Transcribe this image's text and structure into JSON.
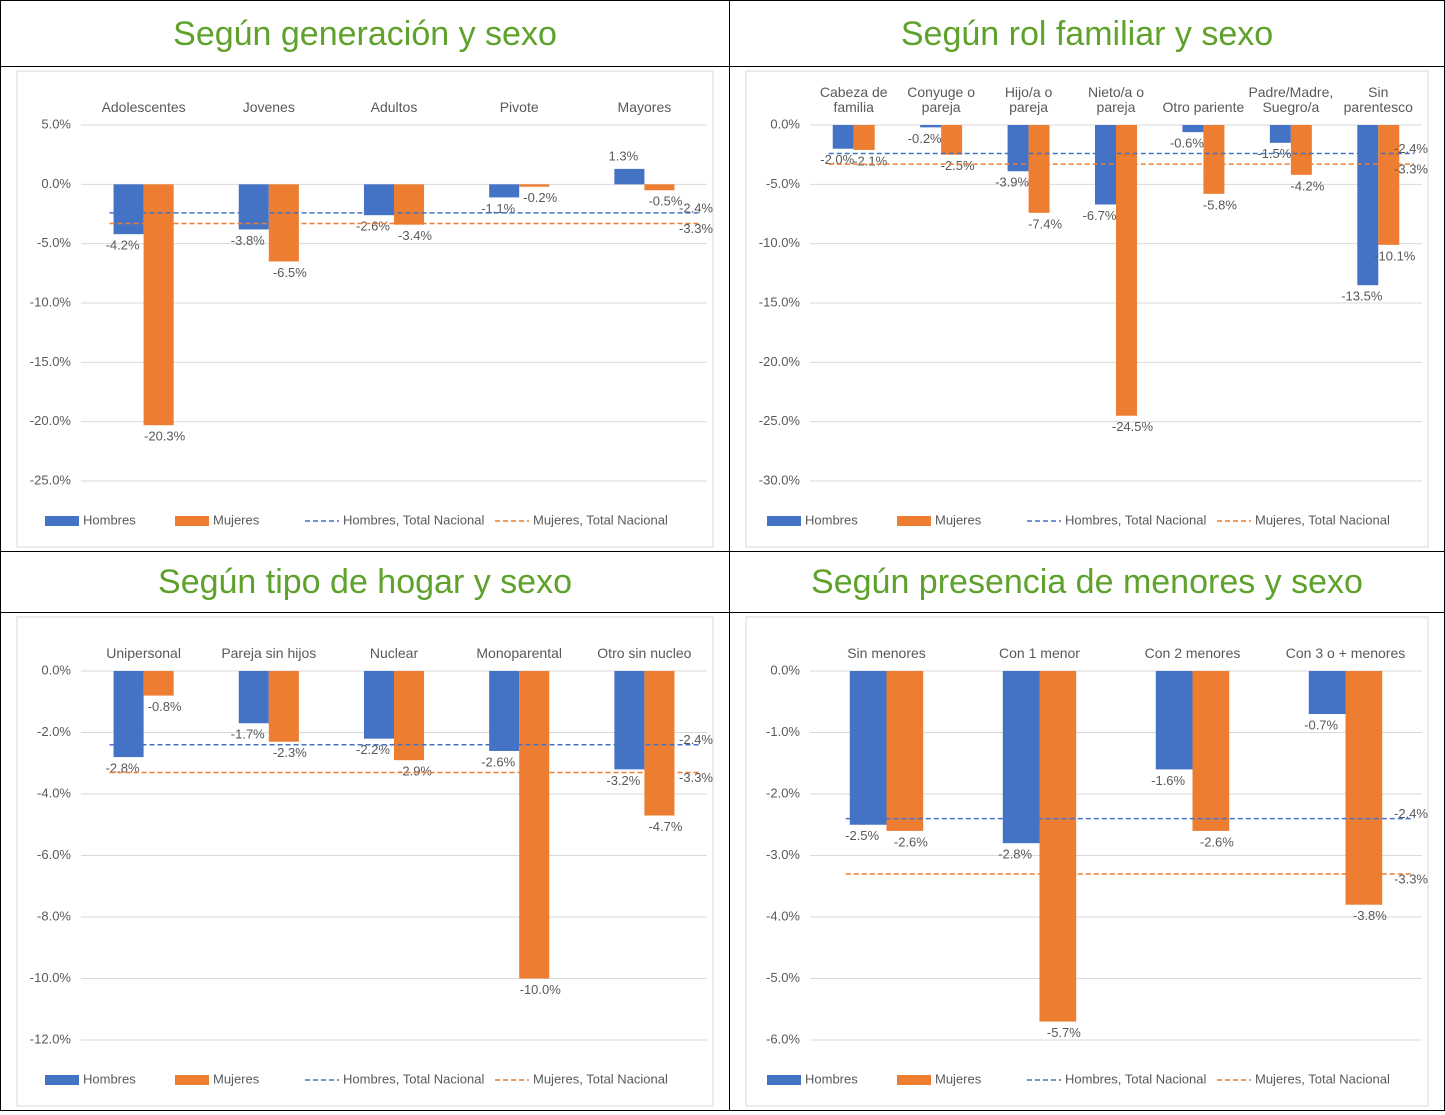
{
  "chart_data": [
    {
      "type": "bar",
      "title": "Según generación y sexo",
      "categories": [
        "Adolescentes",
        "Jovenes",
        "Adultos",
        "Pivote",
        "Mayores"
      ],
      "series": [
        {
          "name": "Hombres",
          "color": "#4472c4",
          "values": [
            -4.2,
            -3.8,
            -2.6,
            -1.1,
            1.3
          ],
          "value_labels": [
            "-4.2%",
            "-3.8%",
            "-2.6%",
            "-1.1%",
            "1.3%"
          ]
        },
        {
          "name": "Mujeres",
          "color": "#ed7d31",
          "values": [
            -20.3,
            -6.5,
            -3.4,
            -0.2,
            -0.5
          ],
          "value_labels": [
            "-20.3%",
            "-6.5%",
            "-3.4%",
            "-0.2%",
            "-0.5%"
          ]
        }
      ],
      "lines": [
        {
          "name": "Hombres, Total Nacional",
          "color": "#4472c4",
          "value": -2.4,
          "value_label": "-2.4%"
        },
        {
          "name": "Mujeres, Total Nacional",
          "color": "#ed7d31",
          "value": -3.3,
          "value_label": "-3.3%"
        }
      ],
      "ylim": [
        -25,
        5
      ],
      "yticks": [
        {
          "value": 5,
          "label": "5.0%"
        },
        {
          "value": 0,
          "label": "0.0%"
        },
        {
          "value": -5,
          "label": "-5.0%"
        },
        {
          "value": -10,
          "label": "-10.0%"
        },
        {
          "value": -15,
          "label": "-15.0%"
        },
        {
          "value": -20,
          "label": "-20.0%"
        },
        {
          "value": -25,
          "label": "-25.0%"
        }
      ],
      "grid": true
    },
    {
      "type": "bar",
      "title": "Según rol familiar y sexo",
      "categories": [
        "Cabeza de familia",
        "Conyuge o pareja",
        "Hijo/a o pareja",
        "Nieto/a o pareja",
        "Otro pariente",
        "Padre/Madre, Suegro/a",
        "Sin parentesco"
      ],
      "series": [
        {
          "name": "Hombres",
          "color": "#4472c4",
          "values": [
            -2.0,
            -0.2,
            -3.9,
            -6.7,
            -0.6,
            -1.5,
            -13.5
          ],
          "value_labels": [
            "-2.0%",
            "-0.2%",
            "-3.9%",
            "-6.7%",
            "-0.6%",
            "-1.5%",
            "-13.5%"
          ]
        },
        {
          "name": "Mujeres",
          "color": "#ed7d31",
          "values": [
            -2.1,
            -2.5,
            -7.4,
            -24.5,
            -5.8,
            -4.2,
            -10.1
          ],
          "value_labels": [
            "-2.1%",
            "-2.5%",
            "-7.4%",
            "-24.5%",
            "-5.8%",
            "-4.2%",
            "-10.1%"
          ]
        }
      ],
      "lines": [
        {
          "name": "Hombres, Total Nacional",
          "color": "#4472c4",
          "value": -2.4,
          "value_label": "-2.4%"
        },
        {
          "name": "Mujeres, Total Nacional",
          "color": "#ed7d31",
          "value": -3.3,
          "value_label": "-3.3%"
        }
      ],
      "ylim": [
        -30,
        0
      ],
      "yticks": [
        {
          "value": 0,
          "label": "0.0%"
        },
        {
          "value": -5,
          "label": "-5.0%"
        },
        {
          "value": -10,
          "label": "-10.0%"
        },
        {
          "value": -15,
          "label": "-15.0%"
        },
        {
          "value": -20,
          "label": "-20.0%"
        },
        {
          "value": -25,
          "label": "-25.0%"
        },
        {
          "value": -30,
          "label": "-30.0%"
        }
      ],
      "grid": true
    },
    {
      "type": "bar",
      "title": "Según tipo de hogar y sexo",
      "categories": [
        "Unipersonal",
        "Pareja sin hijos",
        "Nuclear",
        "Monoparental",
        "Otro sin nucleo"
      ],
      "series": [
        {
          "name": "Hombres",
          "color": "#4472c4",
          "values": [
            -2.8,
            -1.7,
            -2.2,
            -2.6,
            -3.2
          ],
          "value_labels": [
            "-2.8%",
            "-1.7%",
            "-2.2%",
            "-2.6%",
            "-3.2%"
          ]
        },
        {
          "name": "Mujeres",
          "color": "#ed7d31",
          "values": [
            -0.8,
            -2.3,
            -2.9,
            -10.0,
            -4.7
          ],
          "value_labels": [
            "-0.8%",
            "-2.3%",
            "-2.9%",
            "-10.0%",
            "-4.7%"
          ]
        }
      ],
      "lines": [
        {
          "name": "Hombres, Total Nacional",
          "color": "#4472c4",
          "value": -2.4,
          "value_label": "-2.4%"
        },
        {
          "name": "Mujeres, Total Nacional",
          "color": "#ed7d31",
          "value": -3.3,
          "value_label": "-3.3%"
        }
      ],
      "ylim": [
        -12,
        0
      ],
      "yticks": [
        {
          "value": 0,
          "label": "0.0%"
        },
        {
          "value": -2,
          "label": "-2.0%"
        },
        {
          "value": -4,
          "label": "-4.0%"
        },
        {
          "value": -6,
          "label": "-6.0%"
        },
        {
          "value": -8,
          "label": "-8.0%"
        },
        {
          "value": -10,
          "label": "-10.0%"
        },
        {
          "value": -12,
          "label": "-12.0%"
        }
      ],
      "grid": true
    },
    {
      "type": "bar",
      "title": "Según presencia de menores y sexo",
      "categories": [
        "Sin menores",
        "Con 1 menor",
        "Con 2 menores",
        "Con 3 o + menores"
      ],
      "series": [
        {
          "name": "Hombres",
          "color": "#4472c4",
          "values": [
            -2.5,
            -2.8,
            -1.6,
            -0.7
          ],
          "value_labels": [
            "-2.5%",
            "-2.8%",
            "-1.6%",
            "-0.7%"
          ]
        },
        {
          "name": "Mujeres",
          "color": "#ed7d31",
          "values": [
            -2.6,
            -5.7,
            -2.6,
            -3.8
          ],
          "value_labels": [
            "-2.6%",
            "-5.7%",
            "-2.6%",
            "-3.8%"
          ]
        }
      ],
      "lines": [
        {
          "name": "Hombres, Total Nacional",
          "color": "#4472c4",
          "value": -2.4,
          "value_label": "-2.4%"
        },
        {
          "name": "Mujeres, Total Nacional",
          "color": "#ed7d31",
          "value": -3.3,
          "value_label": "-3.3%"
        }
      ],
      "ylim": [
        -6,
        0
      ],
      "yticks": [
        {
          "value": 0,
          "label": "0.0%"
        },
        {
          "value": -1,
          "label": "-1.0%"
        },
        {
          "value": -2,
          "label": "-2.0%"
        },
        {
          "value": -3,
          "label": "-3.0%"
        },
        {
          "value": -4,
          "label": "-4.0%"
        },
        {
          "value": -5,
          "label": "-5.0%"
        },
        {
          "value": -6,
          "label": "-6.0%"
        }
      ],
      "grid": true
    }
  ]
}
